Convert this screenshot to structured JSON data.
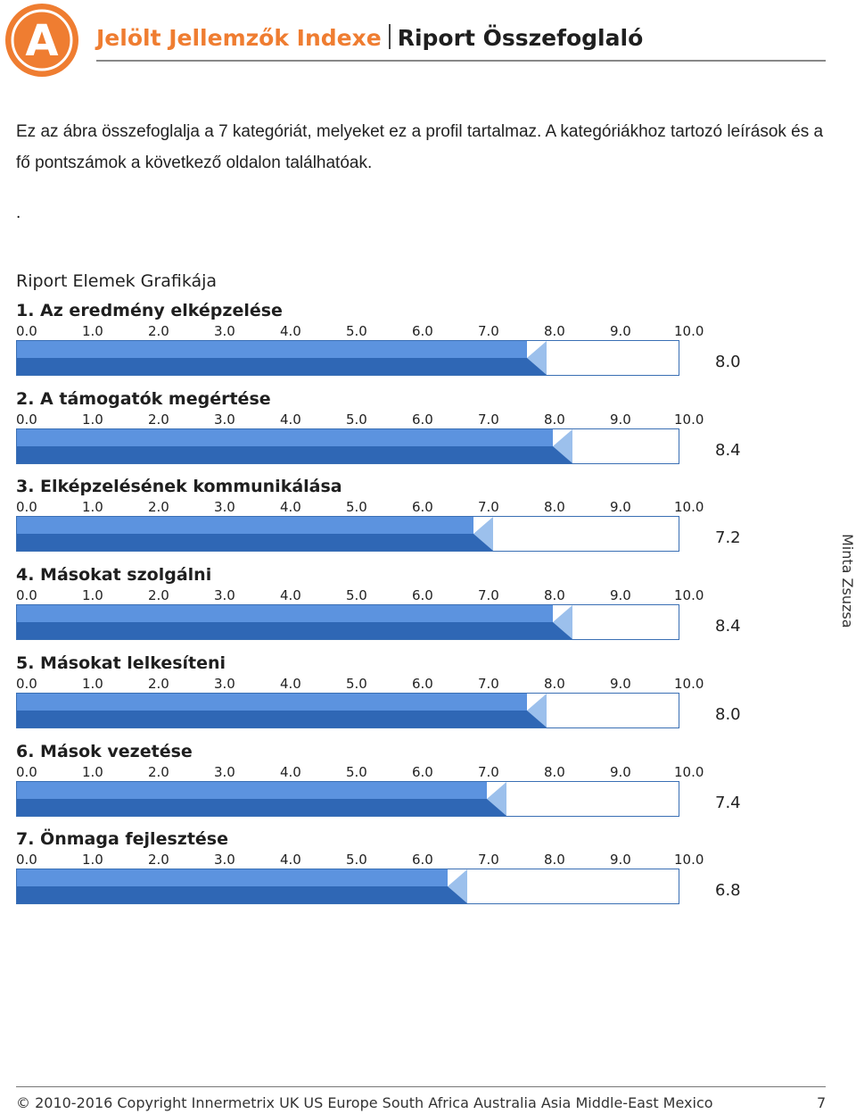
{
  "header": {
    "logo_letter": "A",
    "title_main": "Jelölt Jellemzők Indexe",
    "title_sub": "Riport Összefoglaló"
  },
  "intro": {
    "text": "Ez az ábra összefoglalja a 7 kategóriát, melyeket ez a profil tartalmaz. A kategóriákhoz tartozó leírások és a fő pontszámok a következő oldalon találhatóak.",
    "dot": "."
  },
  "section_title": "Riport Elemek Grafikája",
  "side_name": "Minta Zsuzsa",
  "colors": {
    "accent_orange": "#ef7d31",
    "bar_light": "#5c93df",
    "bar_dark": "#2f67b5",
    "bar_tip": "#9cc0ec",
    "track_border": "#3a6fb4"
  },
  "chart_data": {
    "type": "bar",
    "orientation": "horizontal",
    "xlim": [
      0,
      10
    ],
    "tick_labels": [
      "0.0",
      "1.0",
      "2.0",
      "3.0",
      "4.0",
      "5.0",
      "6.0",
      "7.0",
      "8.0",
      "9.0",
      "10.0"
    ],
    "categories": [
      "1. Az eredmény elképzelése",
      "2. A támogatók megértése",
      "3. Elképzelésének kommunikálása",
      "4. Másokat szolgálni",
      "5. Másokat lelkesíteni",
      "6. Mások vezetése",
      "7. Önmaga fejlesztése"
    ],
    "values": [
      8.0,
      8.4,
      7.2,
      8.4,
      8.0,
      7.4,
      6.8
    ],
    "value_labels": [
      "8.0",
      "8.4",
      "7.2",
      "8.4",
      "8.0",
      "7.4",
      "6.8"
    ]
  },
  "footer": {
    "copyright": "© 2010-2016 Copyright Innermetrix UK  US  Europe South Africa  Australia  Asia  Middle-East Mexico",
    "page_number": "7"
  }
}
